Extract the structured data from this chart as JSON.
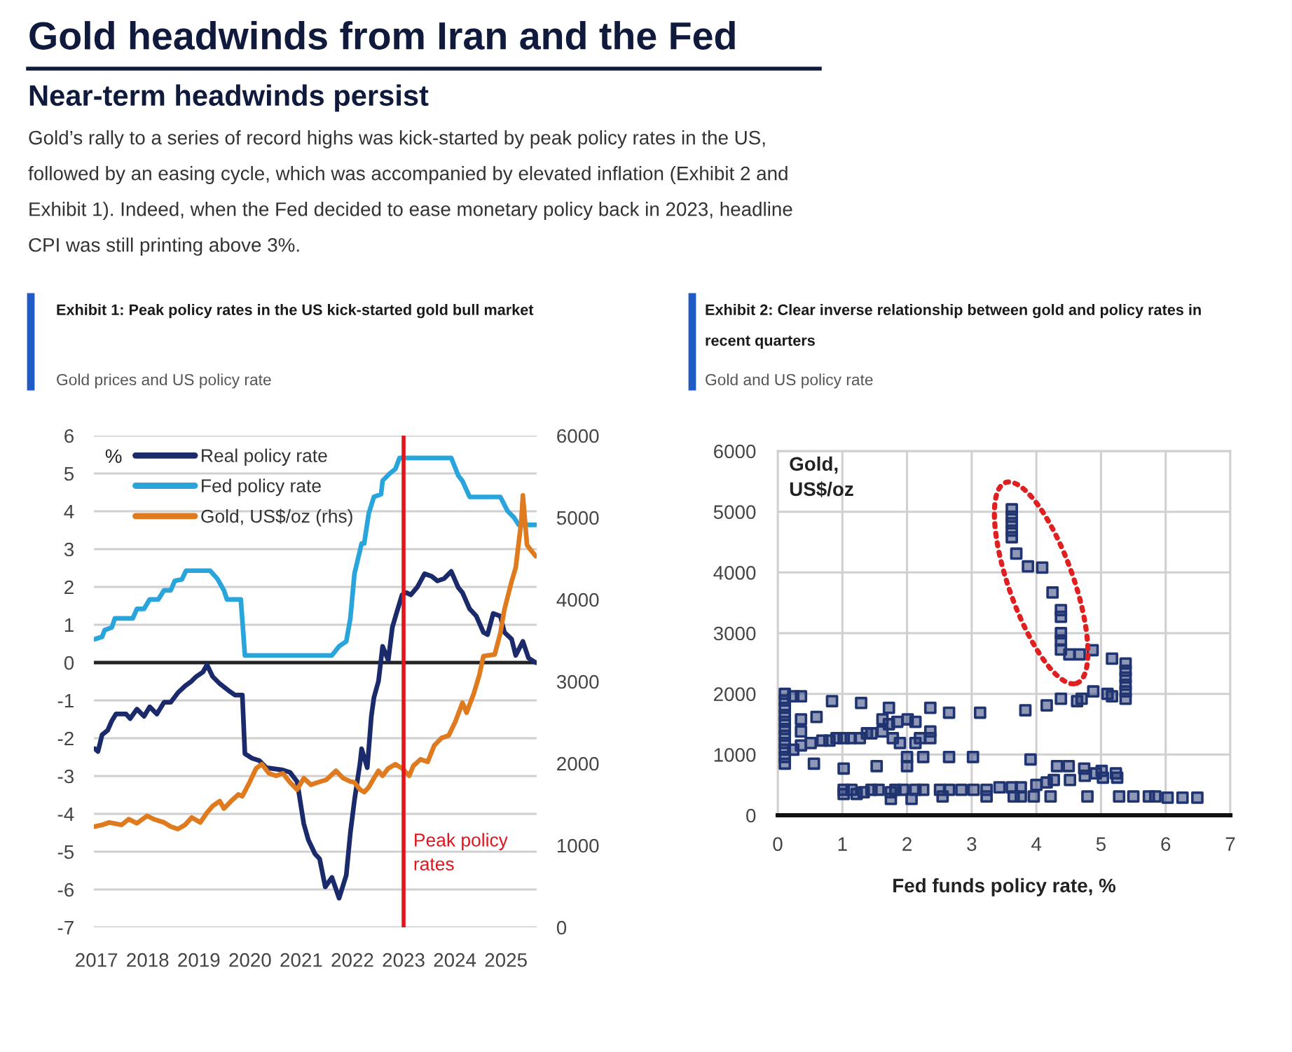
{
  "chart_data": [
    {
      "type": "other",
      "title": "Gold headwinds from Iran and the Fed",
      "subtitle": "Near-term headwinds persist",
      "annotations": [
        "Gold’s rally to a series of record highs was kick-started by peak policy rates in the US,\nfollowed by an easing cycle, which was accompanied by elevated inflation (Exhibit 2 and\nExhibit 1). Indeed, when the Fed decided to ease monetary policy back in 2023, headline\nCPI was still printing above 3%."
      ]
    },
    {
      "type": "line",
      "title": "Exhibit 1: Peak policy rates in the US kick-started gold bull market",
      "subtitle": "Gold prices and US policy rate",
      "ylabel": "%",
      "series": [
        {
          "name": "Real policy rate",
          "color": "#1b2a6b",
          "x": [
            2016.97,
            2017.03,
            2017.11,
            2017.22,
            2017.3,
            2017.38,
            2017.58,
            2017.66,
            2017.79,
            2017.93,
            2018.04,
            2018.18,
            2018.32,
            2018.45,
            2018.59,
            2018.73,
            2018.86,
            2018.95,
            2019.08,
            2019.16,
            2019.27,
            2019.41,
            2019.58,
            2019.71,
            2019.85,
            2019.9,
            2020.04,
            2020.18,
            2020.32,
            2020.64,
            2020.78,
            2020.92,
            2021.05,
            2021.14,
            2021.27,
            2021.36,
            2021.47,
            2021.6,
            2021.74,
            2021.88,
            2021.96,
            2022.04,
            2022.15,
            2022.18,
            2022.29,
            2022.37,
            2022.42,
            2022.51,
            2022.59,
            2022.7,
            2022.78,
            2022.86,
            2022.97,
            2023.05,
            2023.14,
            2023.27,
            2023.41,
            2023.55,
            2023.66,
            2023.79,
            2023.93,
            2024.07,
            2024.15,
            2024.29,
            2024.42,
            2024.56,
            2024.64,
            2024.75,
            2024.89,
            2024.97,
            2025.11,
            2025.19,
            2025.33,
            2025.44,
            2025.58
          ],
          "values": [
            -2.28,
            -2.35,
            -1.91,
            -1.79,
            -1.54,
            -1.36,
            -1.36,
            -1.48,
            -1.23,
            -1.42,
            -1.17,
            -1.36,
            -1.05,
            -1.05,
            -0.8,
            -0.62,
            -0.49,
            -0.37,
            -0.25,
            -0.06,
            -0.37,
            -0.56,
            -0.74,
            -0.86,
            -0.86,
            -2.41,
            -2.53,
            -2.59,
            -2.78,
            -2.84,
            -2.9,
            -3.15,
            -4.26,
            -4.69,
            -5.06,
            -5.19,
            -5.93,
            -5.68,
            -6.23,
            -5.62,
            -4.5,
            -3.64,
            -2.65,
            -2.28,
            -2.78,
            -1.42,
            -0.93,
            -0.49,
            0.43,
            0.06,
            0.93,
            1.3,
            1.79,
            1.85,
            1.79,
            2.0,
            2.35,
            2.28,
            2.16,
            2.22,
            2.41,
            1.98,
            1.85,
            1.42,
            1.23,
            0.8,
            0.74,
            1.3,
            1.23,
            0.8,
            0.62,
            0.19,
            0.56,
            0.12,
            0.0
          ]
        },
        {
          "name": "Fed policy rate",
          "color": "#2aa5dc",
          "x": [
            2016.97,
            2017.11,
            2017.16,
            2017.3,
            2017.36,
            2017.71,
            2017.79,
            2017.93,
            2018.04,
            2018.21,
            2018.32,
            2018.45,
            2018.53,
            2018.67,
            2018.75,
            2019.22,
            2019.36,
            2019.49,
            2019.55,
            2019.82,
            2019.9,
            2021.6,
            2021.74,
            2021.88,
            2021.96,
            2022.04,
            2022.18,
            2022.23,
            2022.32,
            2022.42,
            2022.56,
            2022.59,
            2022.73,
            2022.84,
            2022.92,
            2023.93,
            2024.07,
            2024.15,
            2024.29,
            2024.89,
            2025.03,
            2025.16,
            2025.25,
            2025.58
          ],
          "values": [
            0.62,
            0.68,
            0.86,
            0.93,
            1.17,
            1.17,
            1.42,
            1.42,
            1.67,
            1.67,
            1.91,
            1.91,
            2.16,
            2.2,
            2.43,
            2.43,
            2.22,
            1.91,
            1.67,
            1.67,
            0.19,
            0.19,
            0.43,
            0.56,
            1.17,
            2.35,
            3.15,
            3.15,
            3.95,
            4.38,
            4.45,
            4.81,
            5.0,
            5.12,
            5.41,
            5.41,
            4.94,
            4.8,
            4.38,
            4.38,
            4.01,
            3.83,
            3.64,
            3.64
          ]
        },
        {
          "name": "Gold, US$/oz (rhs)",
          "color": "#e07a1f",
          "axis": "y2",
          "x": [
            2016.97,
            2017.11,
            2017.25,
            2017.49,
            2017.63,
            2017.79,
            2017.99,
            2018.12,
            2018.32,
            2018.45,
            2018.59,
            2018.73,
            2018.86,
            2019.03,
            2019.16,
            2019.27,
            2019.41,
            2019.49,
            2019.63,
            2019.77,
            2019.85,
            2019.99,
            2020.12,
            2020.23,
            2020.37,
            2020.51,
            2020.64,
            2020.78,
            2020.92,
            2021.05,
            2021.19,
            2021.33,
            2021.49,
            2021.68,
            2021.82,
            2021.96,
            2022.04,
            2022.15,
            2022.23,
            2022.32,
            2022.42,
            2022.51,
            2022.59,
            2022.7,
            2022.84,
            2022.97,
            2023.11,
            2023.19,
            2023.33,
            2023.47,
            2023.6,
            2023.74,
            2023.88,
            2024.01,
            2024.15,
            2024.23,
            2024.37,
            2024.48,
            2024.56,
            2024.78,
            2024.89,
            2024.97,
            2025.11,
            2025.19,
            2025.3,
            2025.33,
            2025.41,
            2025.44,
            2025.58
          ],
          "values": [
            1230,
            1250,
            1280,
            1250,
            1320,
            1270,
            1360,
            1320,
            1280,
            1230,
            1200,
            1250,
            1340,
            1280,
            1400,
            1480,
            1540,
            1450,
            1540,
            1620,
            1600,
            1770,
            1940,
            1990,
            1880,
            1850,
            1880,
            1770,
            1680,
            1820,
            1740,
            1770,
            1800,
            1910,
            1820,
            1780,
            1770,
            1680,
            1650,
            1710,
            1820,
            1910,
            1850,
            1940,
            1990,
            1940,
            1850,
            1970,
            2050,
            2020,
            2220,
            2310,
            2340,
            2510,
            2740,
            2620,
            2850,
            3080,
            3310,
            3330,
            3590,
            3880,
            4220,
            4390,
            4960,
            5270,
            4670,
            4640,
            4530
          ]
        }
      ],
      "xlim": [
        2016.95,
        2025.6
      ],
      "xticks": [
        2017,
        2018,
        2019,
        2020,
        2021,
        2022,
        2023,
        2024,
        2025
      ],
      "ylim": [
        -7,
        6
      ],
      "yticks": [
        -7,
        -6,
        -5,
        -4,
        -3,
        -2,
        -1,
        0,
        1,
        2,
        3,
        4,
        5,
        6
      ],
      "y2lim": [
        0,
        6000
      ],
      "y2ticks": [
        0,
        1000,
        2000,
        3000,
        4000,
        5000,
        6000
      ],
      "ref_lines": [
        {
          "axis": "y",
          "value": 0,
          "color": "#222222"
        },
        {
          "axis": "x",
          "value": 2023,
          "label": "Peak policy\nrates",
          "color": "#e3141c"
        }
      ],
      "grid": "y",
      "legend": "top left",
      "line_style": "solid"
    },
    {
      "type": "scatter",
      "title": "Exhibit 2: Clear inverse relationship between gold and policy rates in\nrecent quarters",
      "subtitle": "Gold and US policy rate",
      "xlabel": "Fed funds policy rate, %",
      "ylabel": "Gold,\nUS$/oz",
      "x": [
        0.11,
        0.11,
        0.11,
        0.11,
        0.11,
        0.11,
        0.11,
        0.11,
        0.11,
        0.11,
        0.11,
        0.24,
        0.36,
        0.24,
        0.36,
        0.36,
        0.36,
        0.51,
        0.6,
        0.56,
        0.69,
        0.8,
        0.84,
        0.91,
        1.02,
        1.02,
        1.02,
        1.02,
        1.13,
        1.14,
        1.22,
        1.29,
        1.27,
        1.33,
        1.38,
        1.45,
        1.45,
        1.53,
        1.56,
        1.62,
        1.62,
        1.72,
        1.72,
        1.78,
        1.75,
        1.75,
        1.82,
        1.85,
        1.89,
        1.94,
        2.0,
        2.0,
        2.01,
        2.07,
        2.13,
        2.13,
        2.13,
        2.2,
        2.25,
        2.25,
        2.36,
        2.36,
        2.36,
        2.51,
        2.55,
        2.65,
        2.65,
        2.65,
        2.84,
        3.02,
        3.03,
        3.13,
        3.23,
        3.23,
        3.43,
        3.62,
        3.65,
        3.76,
        3.76,
        3.83,
        3.91,
        3.96,
        4.0,
        4.16,
        4.22,
        4.27,
        4.16,
        4.32,
        4.38,
        4.5,
        4.52,
        4.63,
        4.7,
        4.74,
        4.75,
        4.79,
        4.88,
        4.92,
        5.01,
        5.03,
        5.1,
        5.17,
        5.23,
        5.25,
        5.28,
        5.38,
        5.38,
        5.38,
        5.38,
        5.38,
        5.38,
        5.17,
        5.5,
        5.74,
        5.84,
        6.03,
        6.26,
        6.49,
        3.62,
        3.62,
        3.62,
        3.62,
        3.62,
        3.69,
        3.87,
        4.09,
        4.25,
        4.38,
        4.38,
        4.38,
        4.38,
        4.38,
        4.51,
        4.67,
        4.87
      ],
      "values": [
        2000,
        1890,
        1770,
        1650,
        1540,
        1420,
        1310,
        1190,
        1080,
        960,
        850,
        1960,
        1960,
        1080,
        1150,
        1380,
        1580,
        1190,
        1620,
        850,
        1230,
        1230,
        1880,
        1270,
        770,
        1270,
        420,
        350,
        1270,
        420,
        350,
        1850,
        1270,
        380,
        1350,
        1350,
        420,
        810,
        420,
        1580,
        1380,
        1770,
        1500,
        1270,
        380,
        270,
        420,
        1540,
        1190,
        420,
        960,
        810,
        1580,
        270,
        1540,
        1190,
        420,
        1270,
        960,
        420,
        1380,
        1270,
        1770,
        420,
        310,
        1690,
        960,
        420,
        420,
        960,
        420,
        1690,
        420,
        310,
        460,
        460,
        310,
        460,
        310,
        1730,
        920,
        310,
        500,
        540,
        310,
        580,
        1810,
        810,
        1920,
        810,
        580,
        1880,
        1920,
        770,
        650,
        310,
        2040,
        690,
        730,
        620,
        2000,
        1960,
        690,
        620,
        310,
        2500,
        2380,
        2270,
        2150,
        2040,
        1920,
        2580,
        310,
        310,
        310,
        290,
        290,
        290,
        5040,
        4920,
        4810,
        4690,
        4580,
        4310,
        4100,
        4080,
        3670,
        3380,
        3270,
        3000,
        2880,
        2730,
        2650,
        2650,
        2720
      ],
      "color": "#1f3470",
      "marker": "square",
      "xlim": [
        0,
        7
      ],
      "xticks": [
        0,
        1,
        2,
        3,
        4,
        5,
        6,
        7
      ],
      "ylim": [
        0,
        6000
      ],
      "yticks": [
        0,
        1000,
        2000,
        3000,
        4000,
        5000,
        6000
      ],
      "grid": true
    }
  ]
}
